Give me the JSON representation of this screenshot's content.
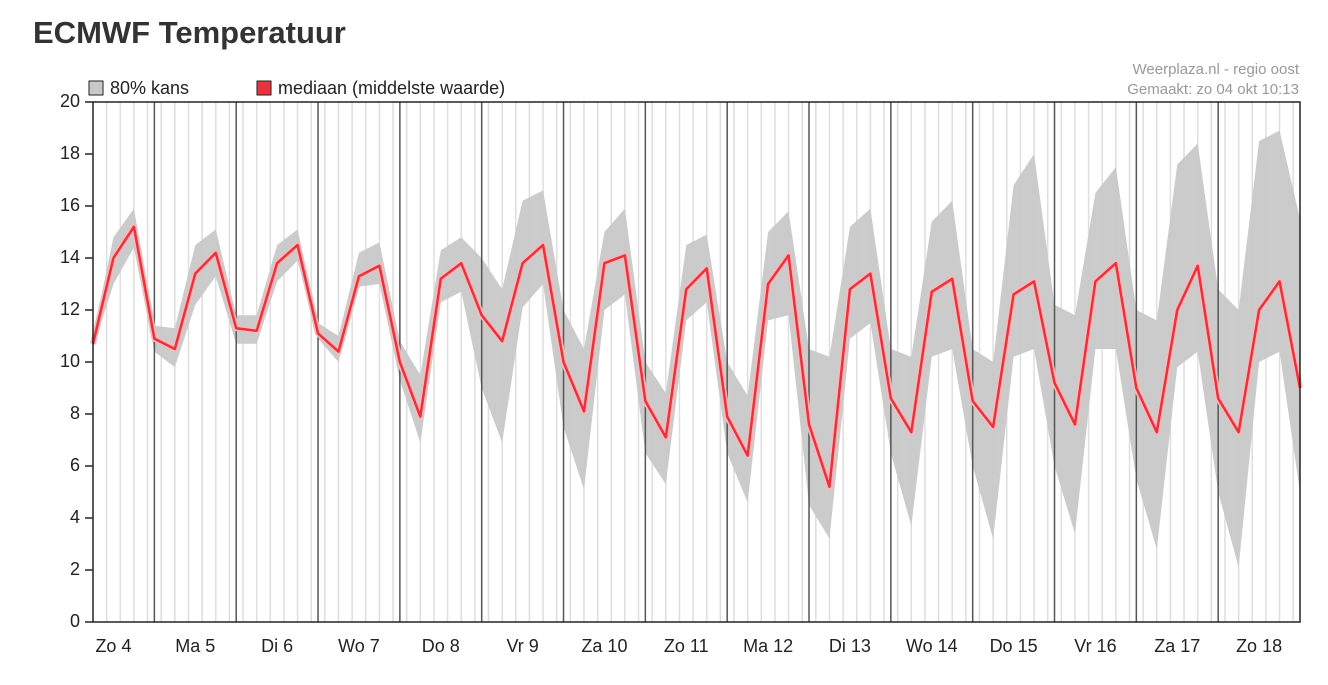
{
  "chart_data": {
    "type": "band-line",
    "title": "ECMWF Temperatuur",
    "annotations": [
      "Weerplaza.nl - regio oost",
      "Gemaakt: zo 04 okt 10:13"
    ],
    "categories": [
      null,
      "Zo 4",
      null,
      null,
      null,
      "Ma 5",
      null,
      null,
      null,
      "Di 6",
      null,
      null,
      null,
      "Wo 7",
      null,
      null,
      null,
      "Do 8",
      null,
      null,
      null,
      "Vr 9",
      null,
      null,
      null,
      "Za 10",
      null,
      null,
      null,
      "Zo 11",
      null,
      null,
      null,
      "Ma 12",
      null,
      null,
      null,
      "Di 13",
      null,
      null,
      null,
      "Wo 14",
      null,
      null,
      null,
      "Do 15",
      null,
      null,
      null,
      "Vr 16",
      null,
      null,
      null,
      "Za 17",
      null,
      null,
      null,
      "Zo 18",
      null,
      null
    ],
    "series": [
      {
        "name": "80% kans",
        "color": "#c8c8c8",
        "low": [
          10.5,
          13.0,
          14.4,
          10.4,
          9.8,
          12.2,
          13.3,
          10.7,
          10.7,
          13.1,
          13.9,
          10.9,
          10.0,
          12.9,
          13.0,
          9.3,
          6.9,
          12.3,
          12.7,
          9.0,
          6.9,
          12.1,
          13.0,
          7.5,
          5.1,
          12.0,
          12.6,
          6.5,
          5.3,
          11.6,
          12.3,
          6.5,
          4.6,
          11.6,
          11.8,
          4.5,
          3.2,
          10.9,
          11.5,
          6.5,
          3.7,
          10.2,
          10.5,
          6.0,
          3.2,
          10.2,
          10.5,
          6.0,
          3.4,
          10.5,
          10.5,
          5.5,
          2.8,
          9.8,
          10.4,
          5.0,
          2.1,
          10.0,
          10.4,
          5.0
        ],
        "high": [
          11.0,
          14.8,
          15.9,
          11.4,
          11.3,
          14.5,
          15.1,
          11.8,
          11.8,
          14.5,
          15.1,
          11.5,
          11.0,
          14.2,
          14.6,
          10.8,
          9.5,
          14.3,
          14.8,
          14.0,
          12.8,
          16.2,
          16.6,
          12.0,
          10.5,
          15.0,
          15.9,
          10.0,
          8.8,
          14.5,
          14.9,
          10.0,
          8.7,
          15.0,
          15.8,
          10.5,
          10.2,
          15.2,
          15.9,
          10.5,
          10.2,
          15.4,
          16.2,
          10.5,
          10.0,
          16.8,
          18.0,
          12.2,
          11.8,
          16.5,
          17.5,
          12.0,
          11.6,
          17.6,
          18.4,
          12.8,
          12.0,
          18.5,
          18.9,
          15.5
        ]
      },
      {
        "name": "mediaan (middelste waarde)",
        "color": "#e8323c",
        "values": [
          10.7,
          14.0,
          15.2,
          10.9,
          10.5,
          13.4,
          14.2,
          11.3,
          11.2,
          13.8,
          14.5,
          11.1,
          10.4,
          13.3,
          13.7,
          10.0,
          7.9,
          13.2,
          13.8,
          11.8,
          10.8,
          13.8,
          14.5,
          10.0,
          8.1,
          13.8,
          14.1,
          8.5,
          7.1,
          12.8,
          13.6,
          7.9,
          6.4,
          13.0,
          14.1,
          7.6,
          5.2,
          12.8,
          13.4,
          8.6,
          7.3,
          12.7,
          13.2,
          8.5,
          7.5,
          12.6,
          13.1,
          9.2,
          7.6,
          13.1,
          13.8,
          9.0,
          7.3,
          12.0,
          13.7,
          8.6,
          7.3,
          12.0,
          13.1,
          9.0
        ]
      }
    ],
    "ylim": [
      0,
      20
    ],
    "yticks": [
      0,
      2,
      4,
      6,
      8,
      10,
      12,
      14,
      16,
      18,
      20
    ]
  }
}
